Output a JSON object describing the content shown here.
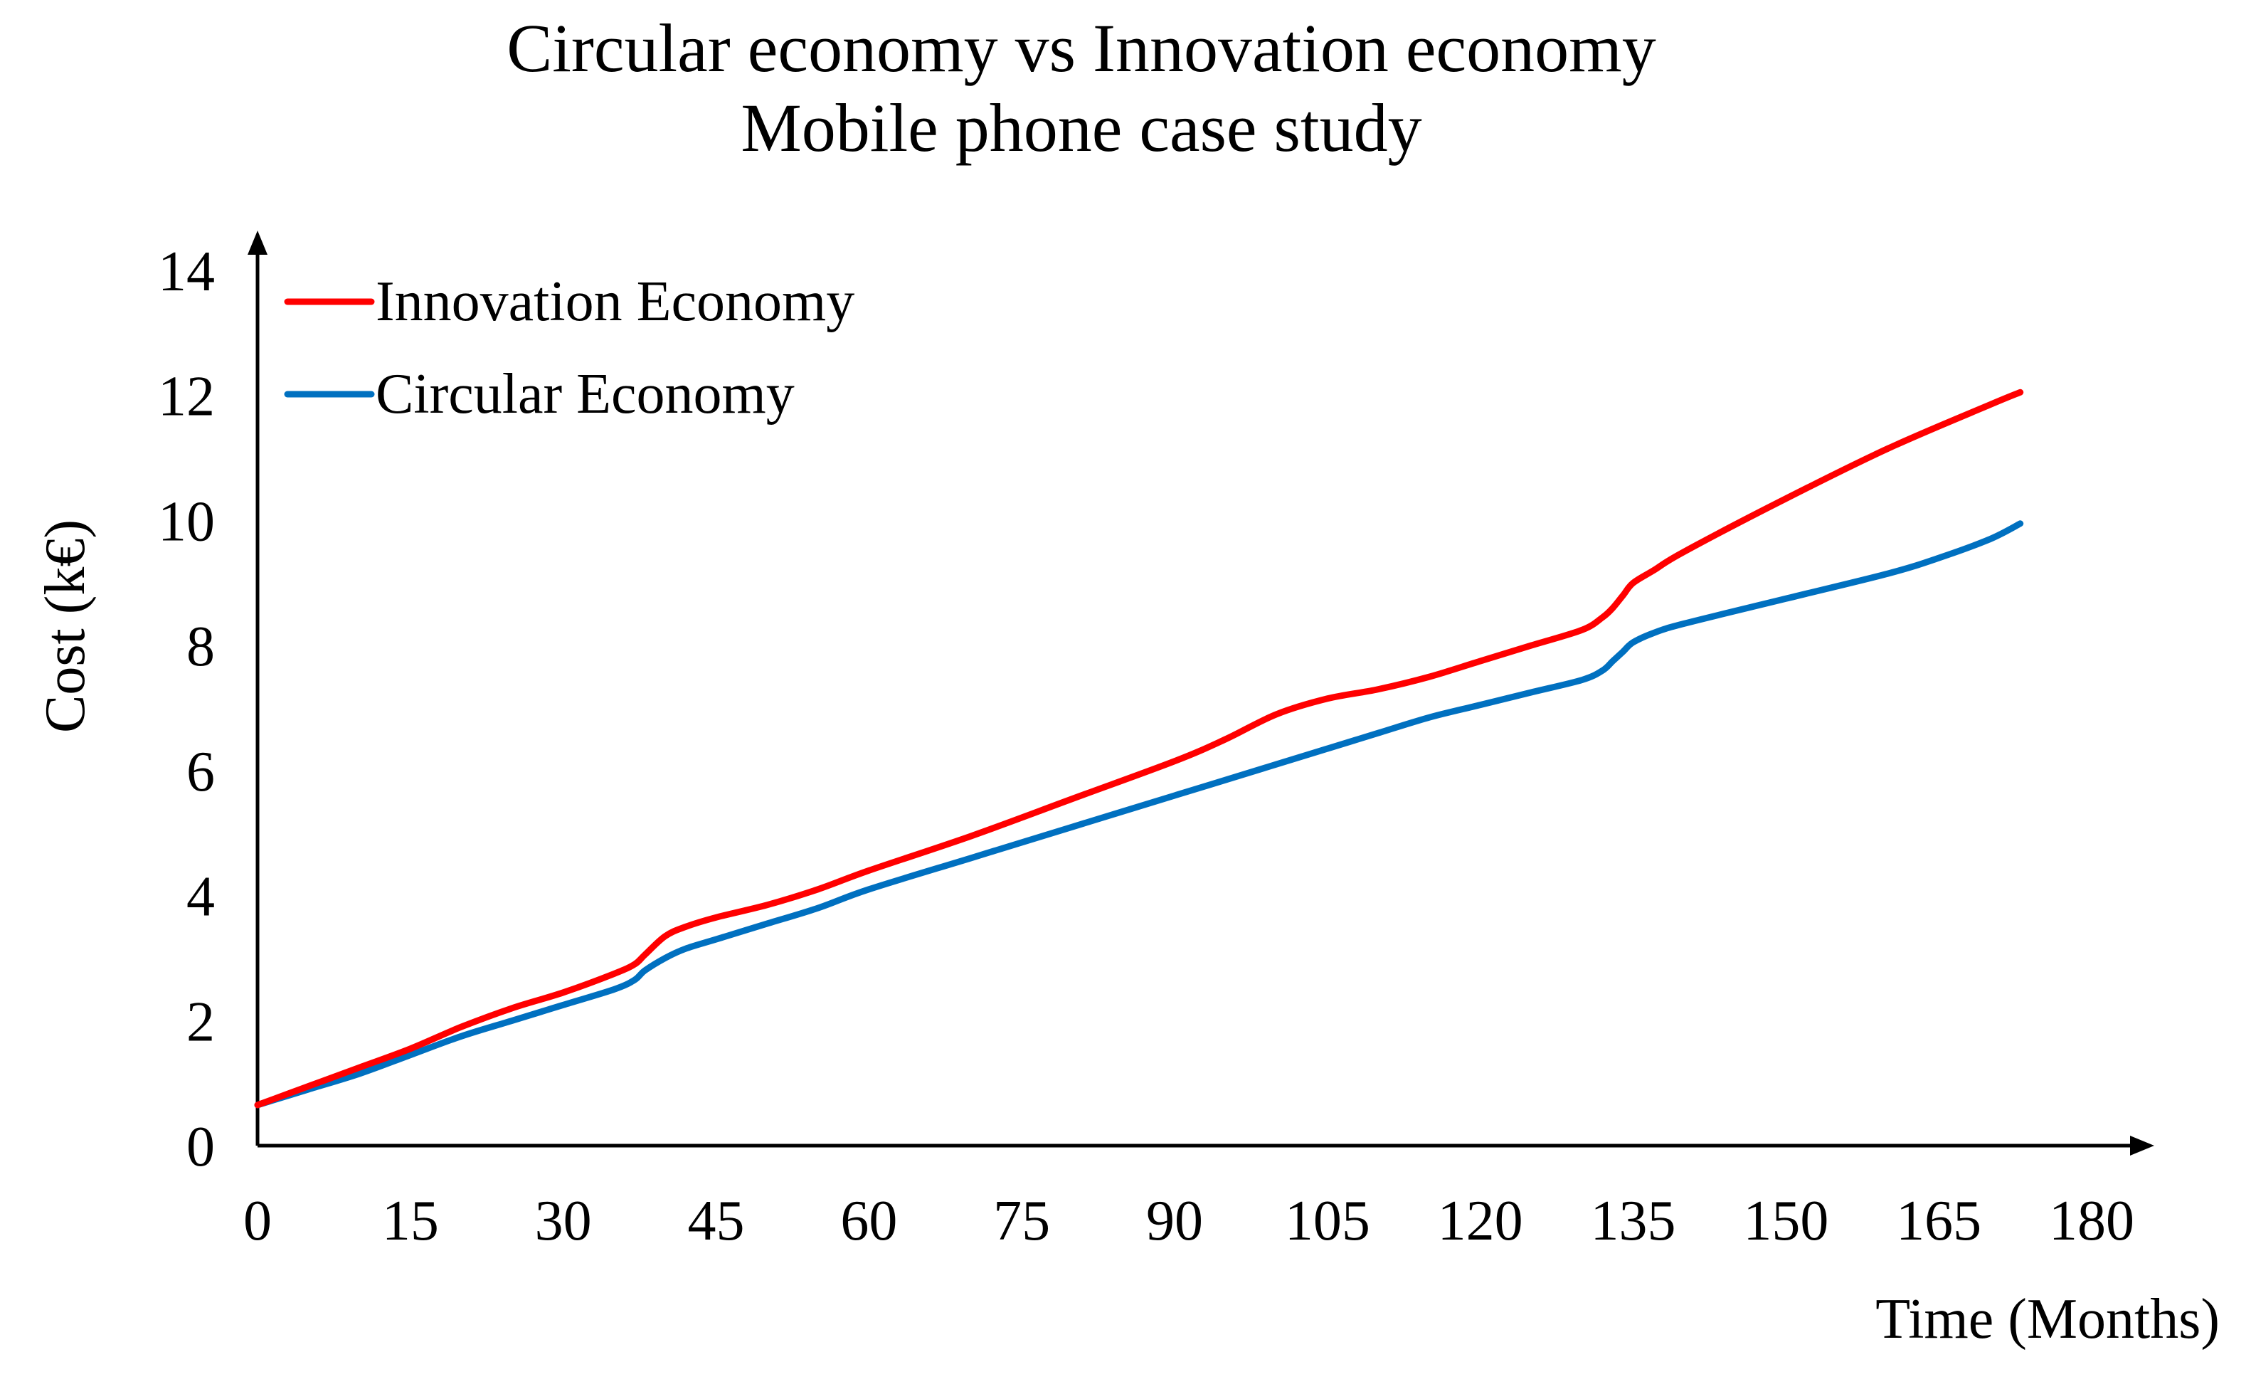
{
  "chart_data": {
    "type": "line",
    "title": "Circular economy vs Innovation economy",
    "subtitle": "Mobile phone case study",
    "xlabel": "Time (Months)",
    "ylabel": "Cost (k€)",
    "xlim": [
      0,
      180
    ],
    "ylim": [
      0,
      14
    ],
    "x_ticks": [
      0,
      15,
      30,
      45,
      60,
      75,
      90,
      105,
      120,
      135,
      150,
      165,
      180
    ],
    "y_ticks": [
      0,
      2,
      4,
      6,
      8,
      10,
      12,
      14
    ],
    "x_tick_labels": [
      "0",
      "15",
      "30",
      "45",
      "60",
      "75",
      "90",
      "105",
      "120",
      "135",
      "150",
      "165",
      "180"
    ],
    "y_tick_labels": [
      "0",
      "2",
      "4",
      "6",
      "8",
      "10",
      "12",
      "14"
    ],
    "grid": false,
    "legend_position": "top-left",
    "series": [
      {
        "name": "Innovation Economy",
        "color": "#ff0000",
        "x": [
          0,
          5,
          10,
          15,
          20,
          25,
          30,
          35,
          37,
          38,
          40,
          42,
          45,
          50,
          55,
          60,
          70,
          80,
          90,
          95,
          100,
          105,
          110,
          115,
          120,
          125,
          130,
          132,
          133,
          134,
          135,
          137,
          140,
          150,
          160,
          170,
          173
        ],
        "y": [
          0.65,
          0.95,
          1.25,
          1.55,
          1.9,
          2.2,
          2.45,
          2.75,
          2.9,
          3.05,
          3.35,
          3.5,
          3.65,
          3.85,
          4.1,
          4.4,
          4.95,
          5.55,
          6.15,
          6.5,
          6.9,
          7.15,
          7.3,
          7.5,
          7.75,
          8.0,
          8.25,
          8.45,
          8.6,
          8.8,
          9.0,
          9.2,
          9.5,
          10.35,
          11.15,
          11.85,
          12.05
        ]
      },
      {
        "name": "Circular Economy",
        "color": "#0070c0",
        "x": [
          0,
          5,
          10,
          15,
          20,
          25,
          30,
          35,
          37,
          38,
          40,
          42,
          45,
          50,
          55,
          60,
          70,
          80,
          90,
          100,
          105,
          110,
          115,
          120,
          125,
          130,
          132,
          133,
          134,
          135,
          137,
          140,
          150,
          160,
          165,
          170,
          173
        ],
        "y": [
          0.65,
          0.9,
          1.15,
          1.45,
          1.75,
          2.0,
          2.25,
          2.5,
          2.65,
          2.8,
          3.0,
          3.15,
          3.3,
          3.55,
          3.8,
          4.1,
          4.6,
          5.1,
          5.6,
          6.1,
          6.35,
          6.6,
          6.85,
          7.05,
          7.25,
          7.45,
          7.6,
          7.75,
          7.9,
          8.05,
          8.2,
          8.35,
          8.75,
          9.15,
          9.4,
          9.7,
          9.95
        ]
      }
    ]
  }
}
